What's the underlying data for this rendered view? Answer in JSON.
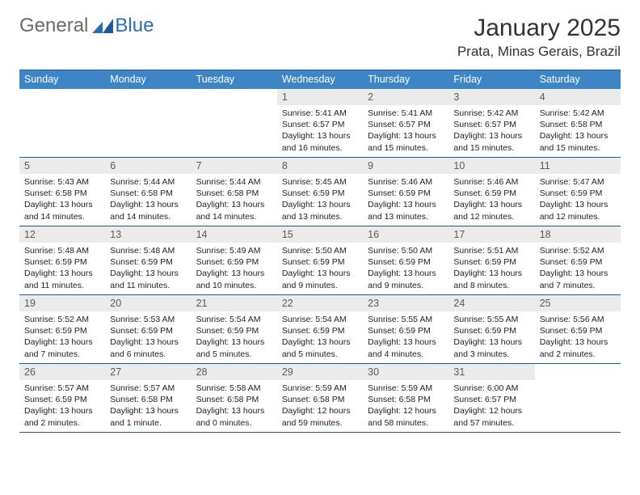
{
  "logo": {
    "general": "General",
    "blue": "Blue"
  },
  "title": "January 2025",
  "location": "Prata, Minas Gerais, Brazil",
  "days_of_week": [
    "Sunday",
    "Monday",
    "Tuesday",
    "Wednesday",
    "Thursday",
    "Friday",
    "Saturday"
  ],
  "colors": {
    "header_bg": "#3e85c6",
    "border": "#1f5a97",
    "daynum_bg": "#ebebeb",
    "logo_accent": "#2a6fb5",
    "text": "#222222"
  },
  "weeks": [
    [
      null,
      null,
      null,
      {
        "n": "1",
        "sr": "5:41 AM",
        "ss": "6:57 PM",
        "dl": "13 hours and 16 minutes."
      },
      {
        "n": "2",
        "sr": "5:41 AM",
        "ss": "6:57 PM",
        "dl": "13 hours and 15 minutes."
      },
      {
        "n": "3",
        "sr": "5:42 AM",
        "ss": "6:57 PM",
        "dl": "13 hours and 15 minutes."
      },
      {
        "n": "4",
        "sr": "5:42 AM",
        "ss": "6:58 PM",
        "dl": "13 hours and 15 minutes."
      }
    ],
    [
      {
        "n": "5",
        "sr": "5:43 AM",
        "ss": "6:58 PM",
        "dl": "13 hours and 14 minutes."
      },
      {
        "n": "6",
        "sr": "5:44 AM",
        "ss": "6:58 PM",
        "dl": "13 hours and 14 minutes."
      },
      {
        "n": "7",
        "sr": "5:44 AM",
        "ss": "6:58 PM",
        "dl": "13 hours and 14 minutes."
      },
      {
        "n": "8",
        "sr": "5:45 AM",
        "ss": "6:59 PM",
        "dl": "13 hours and 13 minutes."
      },
      {
        "n": "9",
        "sr": "5:46 AM",
        "ss": "6:59 PM",
        "dl": "13 hours and 13 minutes."
      },
      {
        "n": "10",
        "sr": "5:46 AM",
        "ss": "6:59 PM",
        "dl": "13 hours and 12 minutes."
      },
      {
        "n": "11",
        "sr": "5:47 AM",
        "ss": "6:59 PM",
        "dl": "13 hours and 12 minutes."
      }
    ],
    [
      {
        "n": "12",
        "sr": "5:48 AM",
        "ss": "6:59 PM",
        "dl": "13 hours and 11 minutes."
      },
      {
        "n": "13",
        "sr": "5:48 AM",
        "ss": "6:59 PM",
        "dl": "13 hours and 11 minutes."
      },
      {
        "n": "14",
        "sr": "5:49 AM",
        "ss": "6:59 PM",
        "dl": "13 hours and 10 minutes."
      },
      {
        "n": "15",
        "sr": "5:50 AM",
        "ss": "6:59 PM",
        "dl": "13 hours and 9 minutes."
      },
      {
        "n": "16",
        "sr": "5:50 AM",
        "ss": "6:59 PM",
        "dl": "13 hours and 9 minutes."
      },
      {
        "n": "17",
        "sr": "5:51 AM",
        "ss": "6:59 PM",
        "dl": "13 hours and 8 minutes."
      },
      {
        "n": "18",
        "sr": "5:52 AM",
        "ss": "6:59 PM",
        "dl": "13 hours and 7 minutes."
      }
    ],
    [
      {
        "n": "19",
        "sr": "5:52 AM",
        "ss": "6:59 PM",
        "dl": "13 hours and 7 minutes."
      },
      {
        "n": "20",
        "sr": "5:53 AM",
        "ss": "6:59 PM",
        "dl": "13 hours and 6 minutes."
      },
      {
        "n": "21",
        "sr": "5:54 AM",
        "ss": "6:59 PM",
        "dl": "13 hours and 5 minutes."
      },
      {
        "n": "22",
        "sr": "5:54 AM",
        "ss": "6:59 PM",
        "dl": "13 hours and 5 minutes."
      },
      {
        "n": "23",
        "sr": "5:55 AM",
        "ss": "6:59 PM",
        "dl": "13 hours and 4 minutes."
      },
      {
        "n": "24",
        "sr": "5:55 AM",
        "ss": "6:59 PM",
        "dl": "13 hours and 3 minutes."
      },
      {
        "n": "25",
        "sr": "5:56 AM",
        "ss": "6:59 PM",
        "dl": "13 hours and 2 minutes."
      }
    ],
    [
      {
        "n": "26",
        "sr": "5:57 AM",
        "ss": "6:59 PM",
        "dl": "13 hours and 2 minutes."
      },
      {
        "n": "27",
        "sr": "5:57 AM",
        "ss": "6:58 PM",
        "dl": "13 hours and 1 minute."
      },
      {
        "n": "28",
        "sr": "5:58 AM",
        "ss": "6:58 PM",
        "dl": "13 hours and 0 minutes."
      },
      {
        "n": "29",
        "sr": "5:59 AM",
        "ss": "6:58 PM",
        "dl": "12 hours and 59 minutes."
      },
      {
        "n": "30",
        "sr": "5:59 AM",
        "ss": "6:58 PM",
        "dl": "12 hours and 58 minutes."
      },
      {
        "n": "31",
        "sr": "6:00 AM",
        "ss": "6:57 PM",
        "dl": "12 hours and 57 minutes."
      },
      null
    ]
  ],
  "labels": {
    "sunrise": "Sunrise:",
    "sunset": "Sunset:",
    "daylight": "Daylight:"
  }
}
